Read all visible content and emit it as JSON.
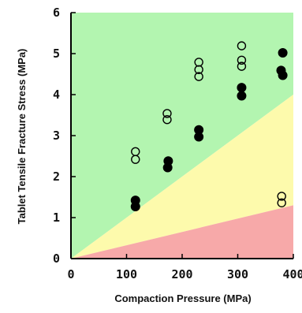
{
  "colors": {
    "green_zone": "#b3f5b0",
    "yellow_zone": "#fdfaac",
    "red_zone": "#f7a9a9",
    "marker": "#000000",
    "axis": "#000000"
  },
  "chart_data": {
    "type": "scatter",
    "title": "",
    "xlabel": "Compaction Pressure (MPa)",
    "ylabel": "Tablet Tensile Fracture Stress (MPa)",
    "xlim": [
      0,
      400
    ],
    "ylim": [
      0,
      6
    ],
    "xticks": [
      0,
      100,
      200,
      300,
      400
    ],
    "yticks": [
      0,
      1,
      2,
      3,
      4,
      5,
      6
    ],
    "grid": false,
    "zones": [
      {
        "color": "green",
        "from_line_slope": 0.01,
        "to": "top"
      },
      {
        "color": "yellow",
        "from_line_slope": 0.00325,
        "to_line_slope": 0.01
      },
      {
        "color": "red",
        "from": "x-axis",
        "to_line_slope": 0.00325
      }
    ],
    "series": [
      {
        "marker": "filled-circle",
        "points": [
          {
            "x": 116,
            "y": 1.42
          },
          {
            "x": 116,
            "y": 1.27
          },
          {
            "x": 175,
            "y": 2.38
          },
          {
            "x": 174,
            "y": 2.22
          },
          {
            "x": 230,
            "y": 3.14
          },
          {
            "x": 230,
            "y": 2.97
          },
          {
            "x": 307,
            "y": 4.17
          },
          {
            "x": 307,
            "y": 3.97
          },
          {
            "x": 381,
            "y": 5.02
          },
          {
            "x": 378,
            "y": 4.59
          },
          {
            "x": 381,
            "y": 4.47
          }
        ]
      },
      {
        "marker": "open-circle",
        "points": [
          {
            "x": 116,
            "y": 2.61
          },
          {
            "x": 116,
            "y": 2.42
          },
          {
            "x": 173,
            "y": 3.54
          },
          {
            "x": 173,
            "y": 3.39
          },
          {
            "x": 230,
            "y": 4.79
          },
          {
            "x": 230,
            "y": 4.61
          },
          {
            "x": 230,
            "y": 4.44
          },
          {
            "x": 307,
            "y": 5.19
          },
          {
            "x": 307,
            "y": 4.84
          },
          {
            "x": 307,
            "y": 4.69
          },
          {
            "x": 379,
            "y": 1.52
          },
          {
            "x": 379,
            "y": 1.36
          }
        ]
      }
    ]
  }
}
